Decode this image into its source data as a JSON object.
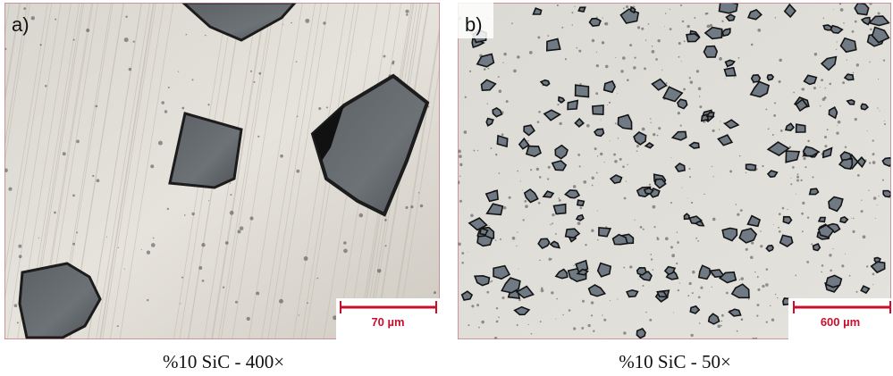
{
  "panels": [
    {
      "label": "a)",
      "scale_bar": "70 µm",
      "caption": "%10 SiC - 400×"
    },
    {
      "label": "b)",
      "scale_bar": "600 µm",
      "caption": "%10 SiC - 50×"
    }
  ]
}
